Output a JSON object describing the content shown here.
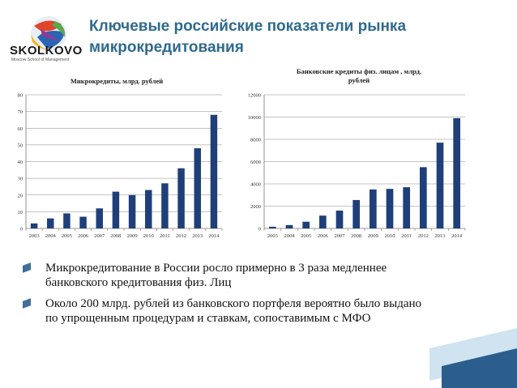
{
  "header": {
    "logo_text": "SKOLKOVO",
    "logo_subtext": "Moscow School of Management",
    "title_line1": "Ключевые российские показатели рынка",
    "title_line2": "микрокредитования"
  },
  "chart_data": [
    {
      "type": "bar",
      "title": "Микрокредиты, млрд. рублей",
      "categories": [
        "2003",
        "2004",
        "2005",
        "2006",
        "2007",
        "2008",
        "2009",
        "2010",
        "2011",
        "2012",
        "2013",
        "2014"
      ],
      "values": [
        3,
        6,
        9,
        7,
        12,
        22,
        20,
        23,
        27,
        36,
        48,
        68
      ],
      "ylim": [
        0,
        80
      ],
      "yticks": [
        0,
        10,
        20,
        30,
        40,
        50,
        60,
        70,
        80
      ],
      "grid": true,
      "bar_color": "#1f3f7a"
    },
    {
      "type": "bar",
      "title_line1": "Банковские кредиты физ. лицам , млрд.",
      "title_line2": "рублей",
      "categories": [
        "2003",
        "2004",
        "2005",
        "2006",
        "2007",
        "2008",
        "2009",
        "2010",
        "2011",
        "2012",
        "2013",
        "2014"
      ],
      "values": [
        150,
        300,
        600,
        1150,
        1600,
        2550,
        3500,
        3550,
        3700,
        5500,
        7700,
        9900
      ],
      "ylim": [
        0,
        12000
      ],
      "yticks": [
        0,
        2000,
        4000,
        6000,
        8000,
        10000,
        12000
      ],
      "grid": true,
      "bar_color": "#1f3f7a"
    }
  ],
  "bullets": [
    {
      "line1": "Микрокредитование в России росло примерно в 3 раза медленнее",
      "line2": "банковского кредитования физ. Лиц"
    },
    {
      "line1": "Около 200 млрд. рублей из банковского портфеля вероятно было выдано",
      "line2": "по упрощенным процедурам и ставкам, сопоставимым с МФО"
    }
  ],
  "colors": {
    "title": "#2f6a8f",
    "bar": "#1f3f7a",
    "bullet": "#3f6f9a",
    "deco_light": "#cfe3f0",
    "deco_dark": "#2b5e8c"
  }
}
